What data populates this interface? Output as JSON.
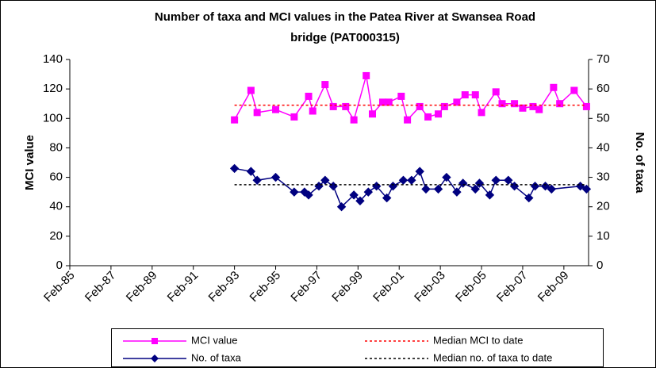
{
  "chart_data": {
    "type": "line",
    "title_lines": [
      "Number of taxa and MCI values in the Patea River at Swansea Road",
      "bridge (PAT000315)"
    ],
    "ylabel": "MCI value",
    "y2label": "No. of taxa",
    "xlim": [
      1985.1,
      2010.3
    ],
    "xticks": [
      {
        "value": 1985.1,
        "label": "Feb-85"
      },
      {
        "value": 1987.1,
        "label": "Feb-87"
      },
      {
        "value": 1989.1,
        "label": "Feb-89"
      },
      {
        "value": 1991.1,
        "label": "Feb-91"
      },
      {
        "value": 1993.1,
        "label": "Feb-93"
      },
      {
        "value": 1995.1,
        "label": "Feb-95"
      },
      {
        "value": 1997.1,
        "label": "Feb-97"
      },
      {
        "value": 1999.1,
        "label": "Feb-99"
      },
      {
        "value": 2001.1,
        "label": "Feb-01"
      },
      {
        "value": 2003.1,
        "label": "Feb-03"
      },
      {
        "value": 2005.1,
        "label": "Feb-05"
      },
      {
        "value": 2007.1,
        "label": "Feb-07"
      },
      {
        "value": 2009.1,
        "label": "Feb-09"
      }
    ],
    "ylim": [
      0,
      140
    ],
    "yticks": [
      0,
      20,
      40,
      60,
      80,
      100,
      120,
      140
    ],
    "y2lim": [
      0,
      70
    ],
    "y2ticks": [
      0,
      10,
      20,
      30,
      40,
      50,
      60,
      70
    ],
    "series": [
      {
        "name": "MCI value",
        "color": "#ff00ff",
        "marker": "square",
        "axis": "y",
        "x": [
          1993.1,
          1993.9,
          1994.2,
          1995.1,
          1996.0,
          1996.7,
          1996.9,
          1997.5,
          1997.9,
          1998.5,
          1998.9,
          1999.5,
          1999.8,
          2000.3,
          2000.6,
          2001.2,
          2001.5,
          2002.1,
          2002.5,
          2003.0,
          2003.3,
          2003.9,
          2004.3,
          2004.8,
          2005.1,
          2005.8,
          2006.1,
          2006.7,
          2007.1,
          2007.6,
          2007.9,
          2008.6,
          2008.9,
          2009.6,
          2010.2
        ],
        "values": [
          99,
          119,
          104,
          106,
          101,
          115,
          105,
          123,
          108,
          108,
          99,
          129,
          103,
          111,
          111,
          115,
          99,
          108,
          101,
          103,
          108,
          111,
          116,
          116,
          104,
          118,
          110,
          110,
          107,
          108,
          106,
          121,
          110,
          119,
          108
        ]
      },
      {
        "name": "No. of taxa",
        "color": "#000080",
        "marker": "diamond",
        "axis": "y2",
        "x": [
          1993.1,
          1993.9,
          1994.2,
          1995.1,
          1996.0,
          1996.5,
          1996.7,
          1997.2,
          1997.5,
          1997.9,
          1998.3,
          1998.9,
          1999.2,
          1999.6,
          2000.0,
          2000.5,
          2000.8,
          2001.3,
          2001.7,
          2002.1,
          2002.4,
          2003.0,
          2003.4,
          2003.9,
          2004.2,
          2004.8,
          2005.0,
          2005.5,
          2005.8,
          2006.4,
          2006.7,
          2007.4,
          2007.7,
          2008.2,
          2008.5,
          2009.9,
          2010.2
        ],
        "values": [
          33,
          32,
          29,
          30,
          25,
          25,
          24,
          27,
          29,
          27,
          20,
          24,
          22,
          25,
          27,
          23,
          27,
          29,
          29,
          32,
          26,
          26,
          30,
          25,
          28,
          26,
          28,
          24,
          29,
          29,
          27,
          23,
          27,
          27,
          26,
          27,
          26
        ]
      },
      {
        "name": "Median MCI to date",
        "color": "#ff0000",
        "dash": true,
        "axis": "y",
        "x": [
          1993.1,
          2010.2
        ],
        "values": [
          109,
          109
        ]
      },
      {
        "name": "Median no. of taxa to date",
        "color": "#000000",
        "dash": true,
        "axis": "y2",
        "x": [
          1993.1,
          2010.2
        ],
        "values": [
          27.5,
          27.5
        ]
      }
    ]
  }
}
